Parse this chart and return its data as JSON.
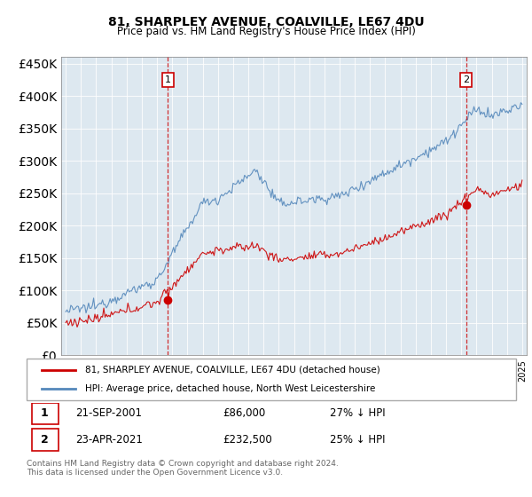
{
  "title": "81, SHARPLEY AVENUE, COALVILLE, LE67 4DU",
  "subtitle": "Price paid vs. HM Land Registry's House Price Index (HPI)",
  "legend_line1": "81, SHARPLEY AVENUE, COALVILLE, LE67 4DU (detached house)",
  "legend_line2": "HPI: Average price, detached house, North West Leicestershire",
  "note1_num": "1",
  "note1_date": "21-SEP-2001",
  "note1_price": "£86,000",
  "note1_hpi": "27% ↓ HPI",
  "note2_num": "2",
  "note2_date": "23-APR-2021",
  "note2_price": "£232,500",
  "note2_hpi": "25% ↓ HPI",
  "footer": "Contains HM Land Registry data © Crown copyright and database right 2024.\nThis data is licensed under the Open Government Licence v3.0.",
  "red_color": "#cc0000",
  "blue_color": "#5588bb",
  "bg_color": "#dde8f0",
  "ylim": [
    0,
    460000
  ],
  "yticks": [
    0,
    50000,
    100000,
    150000,
    200000,
    250000,
    300000,
    350000,
    400000,
    450000
  ],
  "sale1_year": 2001.72,
  "sale1_price": 86000,
  "sale2_year": 2021.31,
  "sale2_price": 232500
}
